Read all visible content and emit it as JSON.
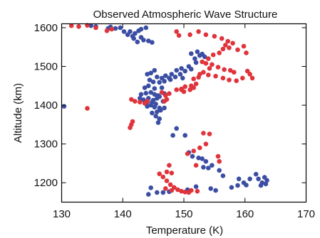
{
  "chart_data": {
    "type": "scatter",
    "title": "Observed Atmospheric Wave Structure",
    "xlabel": "Temperature (K)",
    "ylabel": "Altitude (km)",
    "xlim": [
      130,
      170
    ],
    "ylim": [
      1150,
      1610
    ],
    "xticks": [
      130,
      140,
      150,
      160,
      170
    ],
    "yticks": [
      1200,
      1300,
      1400,
      1500,
      1600
    ],
    "grid": false,
    "legend": "none",
    "series": [
      {
        "color": "#3b4ea3",
        "points": [
          [
            130.4,
            1397
          ],
          [
            134.8,
            1605
          ],
          [
            135.6,
            1603
          ],
          [
            137.6,
            1598
          ],
          [
            138.0,
            1602
          ],
          [
            138.8,
            1598
          ],
          [
            139.6,
            1600
          ],
          [
            140.2,
            1590
          ],
          [
            140.8,
            1582
          ],
          [
            141.2,
            1590
          ],
          [
            141.6,
            1578
          ],
          [
            142.0,
            1585
          ],
          [
            142.6,
            1592
          ],
          [
            143.0,
            1575
          ],
          [
            143.4,
            1568
          ],
          [
            144.2,
            1566
          ],
          [
            144.8,
            1562
          ],
          [
            142.4,
            1563
          ],
          [
            141.8,
            1572
          ],
          [
            143.8,
            1600
          ],
          [
            143.0,
            1596
          ],
          [
            151.2,
            1533
          ],
          [
            151.8,
            1520
          ],
          [
            152.2,
            1538
          ],
          [
            152.6,
            1528
          ],
          [
            153.0,
            1532
          ],
          [
            153.4,
            1525
          ],
          [
            152.0,
            1510
          ],
          [
            150.8,
            1500
          ],
          [
            151.2,
            1493
          ],
          [
            149.6,
            1495
          ],
          [
            148.8,
            1490
          ],
          [
            148.0,
            1480
          ],
          [
            147.6,
            1470
          ],
          [
            147.0,
            1476
          ],
          [
            146.4,
            1470
          ],
          [
            145.6,
            1473
          ],
          [
            145.2,
            1490
          ],
          [
            144.6,
            1483
          ],
          [
            144.0,
            1480
          ],
          [
            144.4,
            1465
          ],
          [
            145.0,
            1460
          ],
          [
            146.0,
            1459
          ],
          [
            146.8,
            1462
          ],
          [
            147.8,
            1466
          ],
          [
            148.6,
            1473
          ],
          [
            149.4,
            1480
          ],
          [
            150.2,
            1488
          ],
          [
            149.8,
            1470
          ],
          [
            144.2,
            1450
          ],
          [
            143.6,
            1445
          ],
          [
            145.2,
            1443
          ],
          [
            146.4,
            1445
          ],
          [
            146.8,
            1430
          ],
          [
            145.8,
            1425
          ],
          [
            145.2,
            1428
          ],
          [
            144.6,
            1433
          ],
          [
            143.8,
            1431
          ],
          [
            143.0,
            1428
          ],
          [
            144.2,
            1418
          ],
          [
            145.0,
            1413
          ],
          [
            145.6,
            1418
          ],
          [
            146.0,
            1422
          ],
          [
            146.6,
            1410
          ],
          [
            144.8,
            1408
          ],
          [
            144.0,
            1408
          ],
          [
            143.4,
            1414
          ],
          [
            142.8,
            1418
          ],
          [
            145.4,
            1403
          ],
          [
            144.6,
            1400
          ],
          [
            144.0,
            1397
          ],
          [
            145.2,
            1395
          ],
          [
            146.0,
            1393
          ],
          [
            146.8,
            1393
          ],
          [
            146.2,
            1387
          ],
          [
            145.6,
            1383
          ],
          [
            144.8,
            1380
          ],
          [
            145.4,
            1372
          ],
          [
            146.0,
            1365
          ],
          [
            145.8,
            1355
          ],
          [
            148.8,
            1340
          ],
          [
            148.2,
            1322
          ],
          [
            150.2,
            1322
          ],
          [
            150.8,
            1278
          ],
          [
            151.4,
            1268
          ],
          [
            152.4,
            1264
          ],
          [
            153.0,
            1262
          ],
          [
            153.6,
            1255
          ],
          [
            153.2,
            1240
          ],
          [
            154.0,
            1238
          ],
          [
            154.6,
            1245
          ],
          [
            155.8,
            1232
          ],
          [
            156.4,
            1218
          ],
          [
            159.0,
            1210
          ],
          [
            155.2,
            1180
          ],
          [
            154.4,
            1185
          ],
          [
            152.0,
            1190
          ],
          [
            150.6,
            1182
          ],
          [
            145.6,
            1175
          ],
          [
            146.6,
            1175
          ],
          [
            147.6,
            1177
          ],
          [
            144.6,
            1187
          ],
          [
            144.2,
            1170
          ],
          [
            160.8,
            1210
          ],
          [
            161.8,
            1222
          ],
          [
            162.2,
            1210
          ],
          [
            162.8,
            1200
          ],
          [
            163.2,
            1214
          ],
          [
            163.6,
            1206
          ],
          [
            163.4,
            1197
          ],
          [
            162.6,
            1193
          ],
          [
            160.2,
            1194
          ],
          [
            159.8,
            1200
          ],
          [
            158.8,
            1193
          ],
          [
            157.8,
            1188
          ]
        ]
      },
      {
        "color": "#e0333b",
        "points": [
          [
            131.6,
            1605
          ],
          [
            132.8,
            1603
          ],
          [
            134.2,
            1606
          ],
          [
            135.6,
            1600
          ],
          [
            137.4,
            1592
          ],
          [
            138.2,
            1596
          ],
          [
            134.2,
            1392
          ],
          [
            141.4,
            1415
          ],
          [
            142.0,
            1410
          ],
          [
            142.8,
            1408
          ],
          [
            143.6,
            1405
          ],
          [
            144.0,
            1410
          ],
          [
            141.6,
            1358
          ],
          [
            141.4,
            1350
          ],
          [
            141.2,
            1342
          ],
          [
            147.0,
            1425
          ],
          [
            147.6,
            1430
          ],
          [
            146.4,
            1433
          ],
          [
            148.8,
            1440
          ],
          [
            147.2,
            1415
          ],
          [
            146.8,
            1410
          ],
          [
            149.6,
            1440
          ],
          [
            150.2,
            1448
          ],
          [
            151.2,
            1450
          ],
          [
            151.6,
            1445
          ],
          [
            152.0,
            1455
          ],
          [
            151.0,
            1440
          ],
          [
            148.8,
            1590
          ],
          [
            149.2,
            1580
          ],
          [
            151.0,
            1582
          ],
          [
            152.4,
            1590
          ],
          [
            153.6,
            1582
          ],
          [
            155.0,
            1578
          ],
          [
            156.2,
            1572
          ],
          [
            157.2,
            1565
          ],
          [
            158.0,
            1560
          ],
          [
            156.8,
            1555
          ],
          [
            156.4,
            1545
          ],
          [
            157.4,
            1548
          ],
          [
            158.8,
            1543
          ],
          [
            159.8,
            1552
          ],
          [
            160.2,
            1535
          ],
          [
            155.8,
            1535
          ],
          [
            154.8,
            1530
          ],
          [
            154.0,
            1520
          ],
          [
            153.0,
            1512
          ],
          [
            153.6,
            1508
          ],
          [
            154.6,
            1505
          ],
          [
            155.6,
            1498
          ],
          [
            156.6,
            1492
          ],
          [
            157.6,
            1490
          ],
          [
            158.2,
            1485
          ],
          [
            154.2,
            1495
          ],
          [
            153.2,
            1485
          ],
          [
            152.6,
            1480
          ],
          [
            154.0,
            1478
          ],
          [
            155.2,
            1475
          ],
          [
            156.4,
            1470
          ],
          [
            157.4,
            1465
          ],
          [
            158.6,
            1463
          ],
          [
            159.6,
            1470
          ],
          [
            160.4,
            1488
          ],
          [
            160.8,
            1480
          ],
          [
            161.2,
            1470
          ],
          [
            152.4,
            1472
          ],
          [
            151.6,
            1468
          ],
          [
            149.6,
            1442
          ],
          [
            150.0,
            1435
          ],
          [
            153.2,
            1328
          ],
          [
            154.2,
            1326
          ],
          [
            153.6,
            1300
          ],
          [
            152.6,
            1290
          ],
          [
            151.6,
            1282
          ],
          [
            150.6,
            1275
          ],
          [
            155.6,
            1268
          ],
          [
            155.8,
            1255
          ],
          [
            152.0,
            1245
          ],
          [
            147.6,
            1245
          ],
          [
            147.2,
            1228
          ],
          [
            148.0,
            1225
          ],
          [
            146.0,
            1223
          ],
          [
            146.6,
            1215
          ],
          [
            147.2,
            1205
          ],
          [
            147.8,
            1195
          ],
          [
            148.4,
            1188
          ],
          [
            149.0,
            1182
          ],
          [
            149.6,
            1178
          ],
          [
            150.2,
            1176
          ],
          [
            150.8,
            1175
          ],
          [
            151.2,
            1180
          ],
          [
            152.2,
            1178
          ],
          [
            148.0,
            1180
          ],
          [
            147.0,
            1185
          ]
        ]
      }
    ]
  }
}
